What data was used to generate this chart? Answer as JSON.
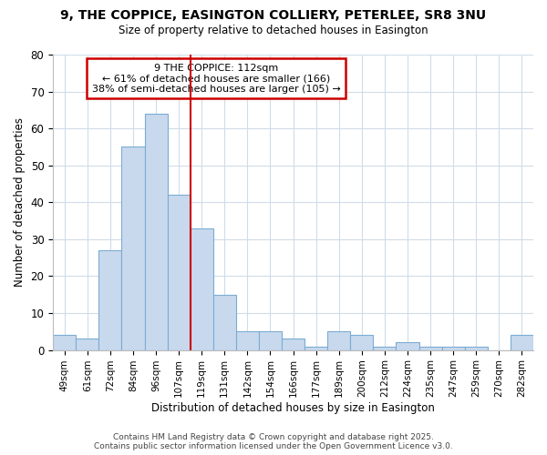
{
  "title_line1": "9, THE COPPICE, EASINGTON COLLIERY, PETERLEE, SR8 3NU",
  "title_line2": "Size of property relative to detached houses in Easington",
  "xlabel": "Distribution of detached houses by size in Easington",
  "ylabel": "Number of detached properties",
  "categories": [
    "49sqm",
    "61sqm",
    "72sqm",
    "84sqm",
    "96sqm",
    "107sqm",
    "119sqm",
    "131sqm",
    "142sqm",
    "154sqm",
    "166sqm",
    "177sqm",
    "189sqm",
    "200sqm",
    "212sqm",
    "224sqm",
    "235sqm",
    "247sqm",
    "259sqm",
    "270sqm",
    "282sqm"
  ],
  "values": [
    4,
    3,
    27,
    55,
    64,
    42,
    33,
    15,
    5,
    5,
    3,
    1,
    5,
    4,
    1,
    2,
    1,
    1,
    1,
    0,
    4
  ],
  "bar_color": "#c9d9ed",
  "bar_edge_color": "#7aacd4",
  "highlight_bar_idx": 5,
  "vline_color": "#cc0000",
  "annotation_line1": "9 THE COPPICE: 112sqm",
  "annotation_line2": "← 61% of detached houses are smaller (166)",
  "annotation_line3": "38% of semi-detached houses are larger (105) →",
  "annotation_box_color": "#ffffff",
  "annotation_box_edge": "#cc0000",
  "ylim": [
    0,
    80
  ],
  "yticks": [
    0,
    10,
    20,
    30,
    40,
    50,
    60,
    70,
    80
  ],
  "grid_color": "#d0dce8",
  "background_color": "#ffffff",
  "footer_line1": "Contains HM Land Registry data © Crown copyright and database right 2025.",
  "footer_line2": "Contains public sector information licensed under the Open Government Licence v3.0."
}
